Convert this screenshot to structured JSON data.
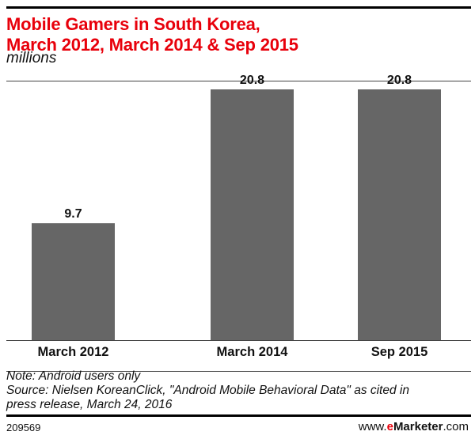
{
  "chart_data": {
    "type": "bar",
    "title": "Mobile Gamers in South Korea, March 2012, March 2014 & Sep 2015",
    "title_lines": [
      "Mobile Gamers in South Korea,",
      "March 2012, March 2014 & Sep 2015"
    ],
    "subtitle": "millions",
    "categories": [
      "March 2012",
      "March 2014",
      "Sep 2015"
    ],
    "values": [
      9.7,
      20.8,
      20.8
    ],
    "value_labels": [
      "9.7",
      "20.8",
      "20.8"
    ],
    "xlabel": "",
    "ylabel": "",
    "ylim": [
      0,
      21.5
    ],
    "grid": false,
    "bar_color": "#666666",
    "title_color": "#e8000b"
  },
  "footer": {
    "note": "Note: Android users only",
    "source_line1": "Source: Nielsen KoreanClick, \"Android Mobile Behavioral Data\" as cited in",
    "source_line2": "press release, March 24, 2016",
    "chart_id": "209569",
    "brand_prefix": "www.",
    "brand_e": "e",
    "brand_name": "Marketer",
    "brand_suffix": ".com"
  }
}
